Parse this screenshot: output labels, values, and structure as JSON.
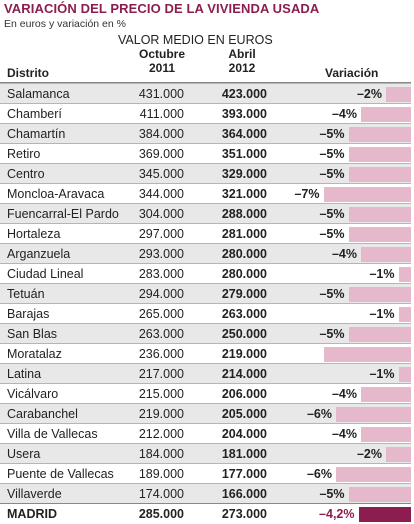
{
  "header": {
    "title": "VARIACIÓN DEL PRECIO DE LA VIVIENDA USADA",
    "subtitle": "En euros y variación en %",
    "value_heading": "VALOR MEDIO EN EUROS",
    "col_october": [
      "Octubre",
      "2011"
    ],
    "col_april": [
      "Abril",
      "2012"
    ],
    "col_district": "Distrito",
    "col_variation": "Variación"
  },
  "colors": {
    "title": "#8b1e4e",
    "bar": "#e6b8cc",
    "total_bar": "#8b1e4e",
    "row_shade": "#e8e8e8"
  },
  "chart_data": {
    "type": "table",
    "title": "VARIACIÓN DEL PRECIO DE LA VIVIENDA USADA",
    "subtitle": "En euros y variación en %",
    "columns": [
      "Distrito",
      "Octubre 2011",
      "Abril 2012",
      "Variación"
    ],
    "rows": [
      {
        "district": "Salamanca",
        "oct2011": "431.000",
        "apr2012": "423.000",
        "variation_label": "–2%",
        "variation": -2
      },
      {
        "district": "Chamberí",
        "oct2011": "411.000",
        "apr2012": "393.000",
        "variation_label": "–4%",
        "variation": -4
      },
      {
        "district": "Chamartín",
        "oct2011": "384.000",
        "apr2012": "364.000",
        "variation_label": "–5%",
        "variation": -5
      },
      {
        "district": "Retiro",
        "oct2011": "369.000",
        "apr2012": "351.000",
        "variation_label": "–5%",
        "variation": -5
      },
      {
        "district": "Centro",
        "oct2011": "345.000",
        "apr2012": "329.000",
        "variation_label": "–5%",
        "variation": -5
      },
      {
        "district": "Moncloa-Aravaca",
        "oct2011": "344.000",
        "apr2012": "321.000",
        "variation_label": "–7%",
        "variation": -7
      },
      {
        "district": "Fuencarral-El Pardo",
        "oct2011": "304.000",
        "apr2012": "288.000",
        "variation_label": "–5%",
        "variation": -5
      },
      {
        "district": "Hortaleza",
        "oct2011": "297.000",
        "apr2012": "281.000",
        "variation_label": "–5%",
        "variation": -5
      },
      {
        "district": "Arganzuela",
        "oct2011": "293.000",
        "apr2012": "280.000",
        "variation_label": "–4%",
        "variation": -4
      },
      {
        "district": "Ciudad Lineal",
        "oct2011": "283.000",
        "apr2012": "280.000",
        "variation_label": "–1%",
        "variation": -1
      },
      {
        "district": "Tetuán",
        "oct2011": "294.000",
        "apr2012": "279.000",
        "variation_label": "–5%",
        "variation": -5
      },
      {
        "district": "Barajas",
        "oct2011": "265.000",
        "apr2012": "263.000",
        "variation_label": "–1%",
        "variation": -1
      },
      {
        "district": "San Blas",
        "oct2011": "263.000",
        "apr2012": "250.000",
        "variation_label": "–5%",
        "variation": -5
      },
      {
        "district": "Moratalaz",
        "oct2011": "236.000",
        "apr2012": "219.000",
        "variation_label": "",
        "variation": -7
      },
      {
        "district": "Latina",
        "oct2011": "217.000",
        "apr2012": "214.000",
        "variation_label": "–1%",
        "variation": -1
      },
      {
        "district": "Vicálvaro",
        "oct2011": "215.000",
        "apr2012": "206.000",
        "variation_label": "–4%",
        "variation": -4
      },
      {
        "district": "Carabanchel",
        "oct2011": "219.000",
        "apr2012": "205.000",
        "variation_label": "–6%",
        "variation": -6
      },
      {
        "district": "Villa de Vallecas",
        "oct2011": "212.000",
        "apr2012": "204.000",
        "variation_label": "–4%",
        "variation": -4
      },
      {
        "district": "Usera",
        "oct2011": "184.000",
        "apr2012": "181.000",
        "variation_label": "–2%",
        "variation": -2
      },
      {
        "district": "Puente de Vallecas",
        "oct2011": "189.000",
        "apr2012": "177.000",
        "variation_label": "–6%",
        "variation": -6
      },
      {
        "district": "Villaverde",
        "oct2011": "174.000",
        "apr2012": "166.000",
        "variation_label": "–5%",
        "variation": -5
      }
    ],
    "total": {
      "district": "MADRID",
      "oct2011": "285.000",
      "apr2012": "273.000",
      "variation_label": "–4,2%",
      "variation": -4.2
    }
  }
}
